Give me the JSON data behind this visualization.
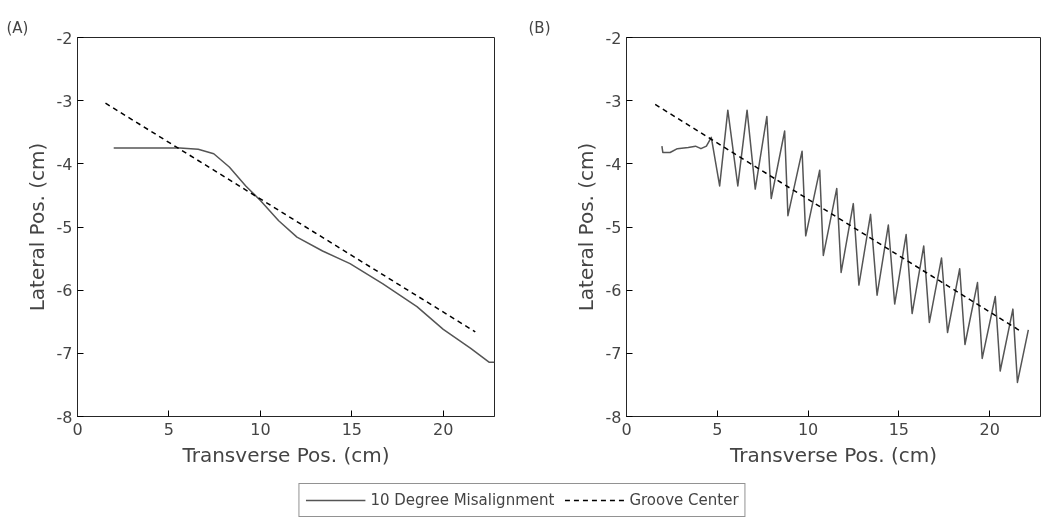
{
  "chart_data": [
    {
      "type": "line",
      "title": "(A)",
      "xlabel": "Transverse Pos. (cm)",
      "ylabel": "Lateral Pos. (cm)",
      "xlim": [
        0,
        22.8
      ],
      "ylim": [
        -8,
        -2
      ],
      "xticks": [
        0,
        5,
        10,
        15,
        20
      ],
      "yticks": [
        -8,
        -7,
        -6,
        -5,
        -4,
        -3,
        -2
      ],
      "grid": false,
      "legend": "bottom",
      "series": [
        {
          "name": "10 Degree Misalignment",
          "color": "#555555",
          "line_style": "solid",
          "x": [
            1.98,
            3.5,
            5.6,
            6.6,
            7.45,
            8.3,
            9.2,
            10.0,
            11.0,
            12.0,
            13.4,
            14.9,
            16.7,
            18.56,
            20.0,
            21.5,
            22.5,
            22.8
          ],
          "values": [
            -3.75,
            -3.75,
            -3.75,
            -3.77,
            -3.84,
            -4.05,
            -4.35,
            -4.58,
            -4.9,
            -5.16,
            -5.38,
            -5.58,
            -5.9,
            -6.26,
            -6.62,
            -6.92,
            -7.14,
            -7.14
          ]
        },
        {
          "name": "Groove Center",
          "color": "#000000",
          "line_style": "dashed",
          "x": [
            1.53,
            21.75
          ],
          "values": [
            -3.04,
            -6.66
          ]
        }
      ]
    },
    {
      "type": "line",
      "title": "(B)",
      "xlabel": "Transverse Pos. (cm)",
      "ylabel": "Lateral Pos. (cm)",
      "xlim": [
        0,
        22.8
      ],
      "ylim": [
        -8,
        -2
      ],
      "xticks": [
        0,
        5,
        10,
        15,
        20
      ],
      "yticks": [
        -8,
        -7,
        -6,
        -5,
        -4,
        -3,
        -2
      ],
      "grid": false,
      "series": [
        {
          "color": "#555555",
          "line_style": "solid",
          "x": [
            1.95,
            2.0,
            2.4,
            2.8,
            3.4,
            3.8,
            4.1,
            4.4,
            4.67,
            5.13,
            5.58,
            6.13,
            6.64,
            7.09,
            7.73,
            7.97,
            8.71,
            8.89,
            9.67,
            9.87,
            10.64,
            10.84,
            11.58,
            11.82,
            12.49,
            12.8,
            13.44,
            13.8,
            14.42,
            14.77,
            15.4,
            15.73,
            16.37,
            16.68,
            17.35,
            17.68,
            18.35,
            18.64,
            19.33,
            19.59,
            20.31,
            20.58,
            21.28,
            21.53,
            22.13
          ],
          "values": [
            -3.72,
            -3.82,
            -3.82,
            -3.76,
            -3.74,
            -3.72,
            -3.76,
            -3.72,
            -3.58,
            -4.35,
            -3.15,
            -4.35,
            -3.15,
            -4.4,
            -3.25,
            -4.55,
            -3.48,
            -4.82,
            -3.8,
            -5.14,
            -4.1,
            -5.45,
            -4.39,
            -5.72,
            -4.63,
            -5.92,
            -4.8,
            -6.08,
            -4.97,
            -6.22,
            -5.12,
            -6.37,
            -5.3,
            -6.51,
            -5.49,
            -6.67,
            -5.66,
            -6.86,
            -5.88,
            -7.08,
            -6.1,
            -7.28,
            -6.3,
            -7.46,
            -6.63
          ]
        },
        {
          "color": "#000000",
          "line_style": "dashed",
          "x": [
            1.58,
            21.77
          ],
          "values": [
            -3.06,
            -6.66
          ]
        }
      ]
    }
  ]
}
